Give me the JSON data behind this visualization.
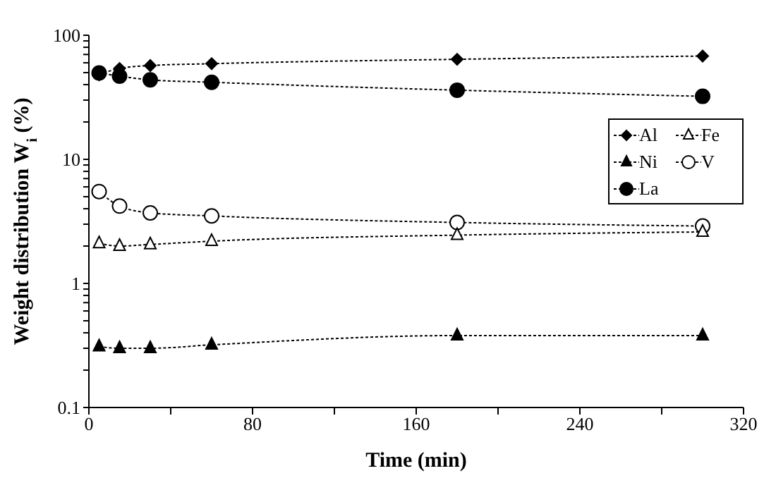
{
  "chart_data": {
    "type": "line",
    "xlabel": "Time (min)",
    "ylabel": "Weight distribution W$_{i}$ (%)",
    "xlim": [
      0,
      320
    ],
    "xticks": [
      0,
      {
        "value": 40,
        "label": null
      },
      80,
      {
        "value": 120,
        "label": null
      },
      160,
      {
        "value": 200,
        "label": null
      },
      240,
      {
        "value": 280,
        "label": null
      },
      320
    ],
    "ylim": [
      0.1,
      100
    ],
    "yticks": [
      0.1,
      {
        "value": 0.2,
        "label": null
      },
      {
        "value": 0.3,
        "label": null
      },
      {
        "value": 0.4,
        "label": null
      },
      {
        "value": 0.5,
        "label": null
      },
      {
        "value": 0.6,
        "label": null
      },
      {
        "value": 0.7,
        "label": null
      },
      {
        "value": 0.8,
        "label": null
      },
      {
        "value": 0.9,
        "label": null
      },
      1,
      {
        "value": 2,
        "label": null
      },
      {
        "value": 3,
        "label": null
      },
      {
        "value": 4,
        "label": null
      },
      {
        "value": 5,
        "label": null
      },
      {
        "value": 6,
        "label": null
      },
      {
        "value": 7,
        "label": null
      },
      {
        "value": 8,
        "label": null
      },
      {
        "value": 9,
        "label": null
      },
      10,
      {
        "value": 20,
        "label": null
      },
      {
        "value": 30,
        "label": null
      },
      {
        "value": 40,
        "label": null
      },
      {
        "value": 50,
        "label": null
      },
      {
        "value": 60,
        "label": null
      },
      {
        "value": 70,
        "label": null
      },
      {
        "value": 80,
        "label": null
      },
      {
        "value": 90,
        "label": null
      },
      100
    ],
    "log": "y",
    "legend": "right",
    "line_style": "dashed",
    "x": [
      5,
      15,
      30,
      60,
      180,
      300
    ],
    "series": [
      {
        "name": "Al",
        "color": "#000000",
        "marker": "diamond",
        "values": [
          48,
          54,
          57,
          59,
          64,
          68
        ]
      },
      {
        "name": "Fe",
        "color": "#ffffff",
        "marker": "triangle",
        "values": [
          2.1,
          2.0,
          2.06,
          2.19,
          2.45,
          2.6
        ]
      },
      {
        "name": "Ni",
        "color": "#000000",
        "marker": "triangle",
        "values": [
          0.31,
          0.3,
          0.3,
          0.32,
          0.38,
          0.38
        ]
      },
      {
        "name": "V",
        "color": "#ffffff",
        "marker": "circle",
        "values": [
          5.5,
          4.2,
          3.7,
          3.5,
          3.1,
          2.9
        ]
      },
      {
        "name": "La",
        "color": "#000000",
        "marker": "circle",
        "values": [
          49.7,
          46.8,
          43.7,
          41.8,
          36.1,
          32.2
        ]
      }
    ]
  }
}
